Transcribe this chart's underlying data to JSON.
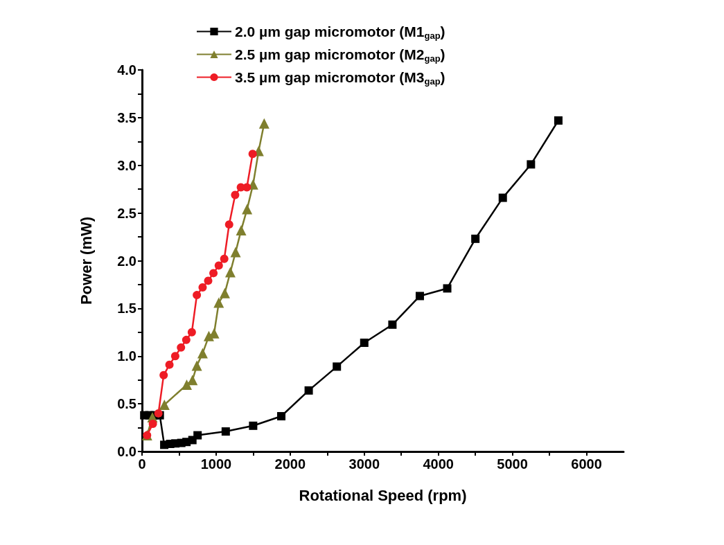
{
  "chart_data": {
    "type": "line",
    "xlabel": "Rotational Speed (rpm)",
    "ylabel": "Power (mW)",
    "xlim": [
      0,
      6500
    ],
    "ylim": [
      0,
      4
    ],
    "xticks": [
      0,
      {
        "value": 500,
        "label": null
      },
      1000,
      {
        "value": 1500,
        "label": null
      },
      2000,
      {
        "value": 2500,
        "label": null
      },
      3000,
      {
        "value": 3500,
        "label": null
      },
      4000,
      {
        "value": 4500,
        "label": null
      },
      5000,
      {
        "value": 5500,
        "label": null
      },
      6000
    ],
    "yticks": [
      {
        "value": 0,
        "label": "0.0"
      },
      {
        "value": 0.25,
        "label": null
      },
      0.5,
      {
        "value": 0.75,
        "label": null
      },
      {
        "value": 1,
        "label": "1.0"
      },
      {
        "value": 1.25,
        "label": null
      },
      1.5,
      {
        "value": 1.75,
        "label": null
      },
      {
        "value": 2,
        "label": "2.0"
      },
      {
        "value": 2.25,
        "label": null
      },
      2.5,
      {
        "value": 2.75,
        "label": null
      },
      {
        "value": 3,
        "label": "3.0"
      },
      {
        "value": 3.25,
        "label": null
      },
      3.5,
      {
        "value": 3.75,
        "label": null
      },
      {
        "value": 4,
        "label": "4.0"
      }
    ],
    "grid": false,
    "legend": "top",
    "line_style": "solid",
    "series": [
      {
        "name": "2.0 µm gap micromotor (M1$_{gap}$)",
        "color": "#000000",
        "marker": "square",
        "x": [
          30,
          100,
          170,
          240,
          300,
          380,
          450,
          530,
          600,
          680,
          750,
          1130,
          1500,
          1880,
          2250,
          2630,
          3000,
          3380,
          3750,
          4120,
          4500,
          4870,
          5250,
          5620
        ],
        "values": [
          0.38,
          0.38,
          0.38,
          0.38,
          0.07,
          0.08,
          0.085,
          0.09,
          0.1,
          0.12,
          0.17,
          0.21,
          0.27,
          0.37,
          0.64,
          0.89,
          1.14,
          1.33,
          1.63,
          1.71,
          2.23,
          2.66,
          3.01,
          3.47
        ]
      },
      {
        "name": "2.5 µm gap micromotor (M2$_{gap}$)",
        "color": "#7f7f2e",
        "marker": "triangle",
        "x": [
          68,
          140,
          302,
          603,
          681,
          740,
          818,
          902,
          973,
          1036,
          1117,
          1192,
          1263,
          1338,
          1418,
          1499,
          1574,
          1649
        ],
        "values": [
          0.17,
          0.36,
          0.49,
          0.7,
          0.75,
          0.9,
          1.03,
          1.21,
          1.24,
          1.56,
          1.66,
          1.88,
          2.09,
          2.32,
          2.54,
          2.8,
          3.15,
          3.44
        ]
      },
      {
        "name": "3.5 µm gap micromotor (M3$_{gap}$)",
        "color": "#ee1c25",
        "marker": "circle",
        "x": [
          68,
          146,
          221,
          292,
          370,
          448,
          526,
          597,
          672,
          740,
          818,
          893,
          964,
          1036,
          1110,
          1176,
          1257,
          1334,
          1415,
          1493
        ],
        "values": [
          0.17,
          0.29,
          0.4,
          0.8,
          0.91,
          1.0,
          1.09,
          1.17,
          1.25,
          1.64,
          1.72,
          1.79,
          1.87,
          1.95,
          2.02,
          2.38,
          2.69,
          2.77,
          2.77,
          3.12
        ]
      }
    ]
  }
}
